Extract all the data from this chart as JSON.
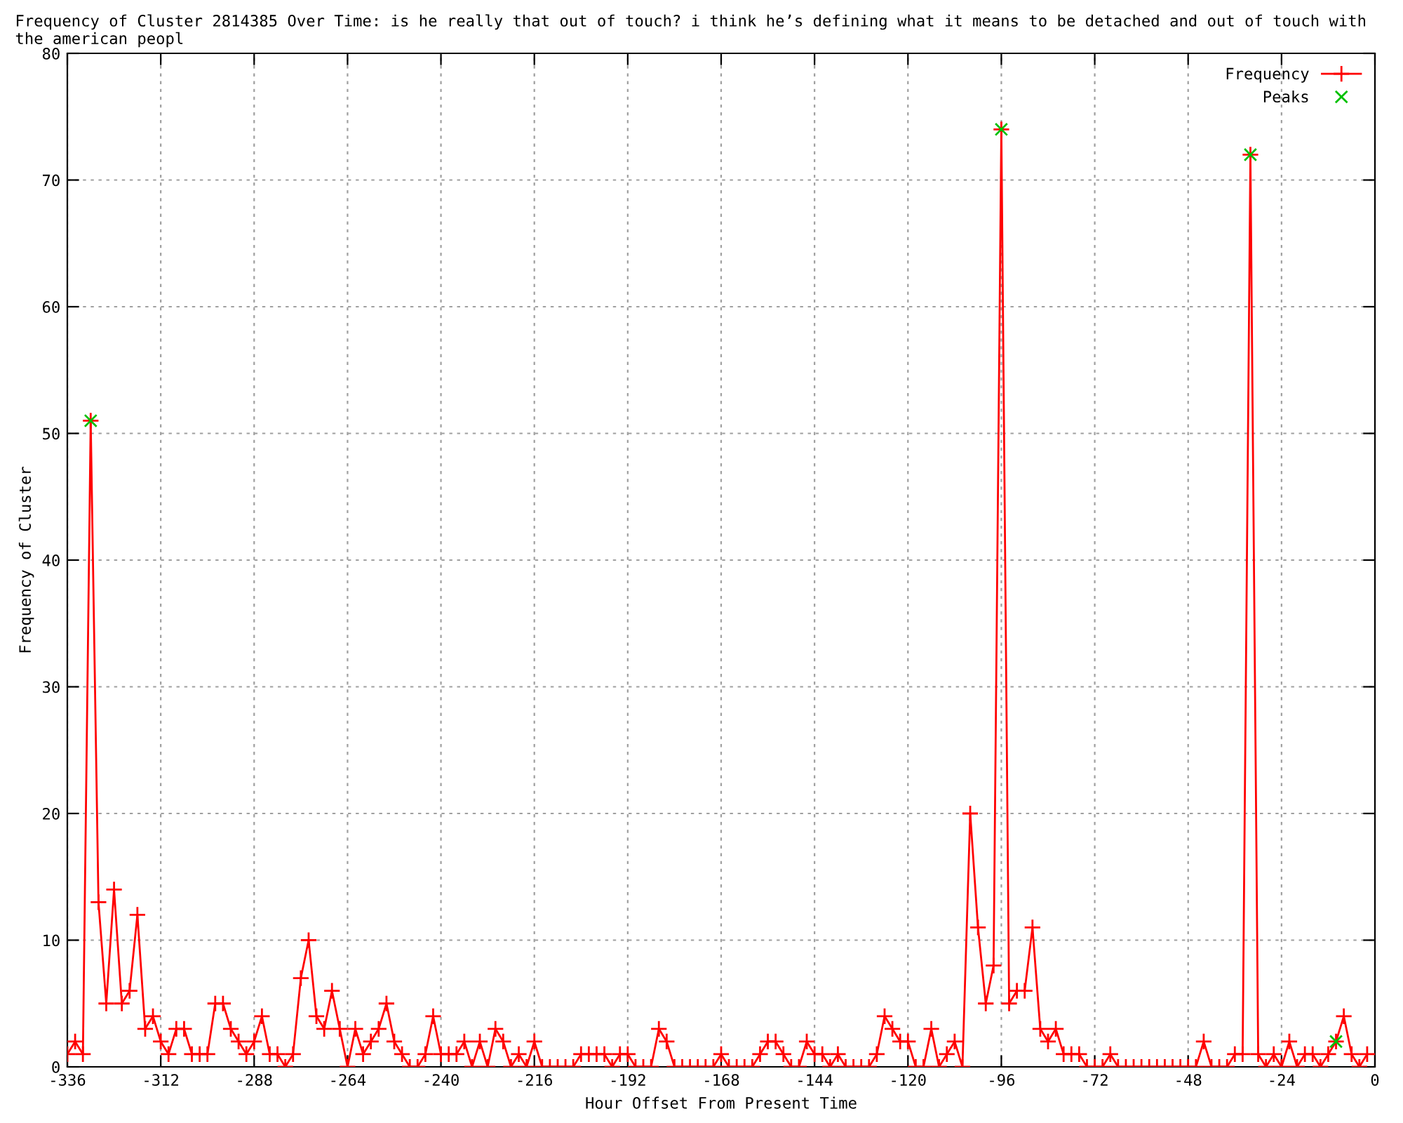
{
  "chart_data": {
    "type": "line",
    "title": "Frequency of Cluster 2814385 Over Time: is he really that out of touch? i think he’s defining what it means to be detached and out of touch with the american peopl",
    "xlabel": "Hour Offset From Present Time",
    "ylabel": "Frequency of Cluster",
    "xlim": [
      -336,
      0
    ],
    "xticks": [
      -336,
      -312,
      -288,
      -264,
      -240,
      -216,
      -192,
      -168,
      -144,
      -120,
      -96,
      -72,
      -48,
      -24,
      0
    ],
    "ylim": [
      0,
      80
    ],
    "yticks": [
      0,
      10,
      20,
      30,
      40,
      50,
      60,
      70,
      80
    ],
    "grid": true,
    "legend": "top right",
    "series": [
      {
        "name": "Frequency",
        "color": "#ff0000",
        "marker": "cross",
        "x": [
          -336,
          -334,
          -332,
          -330,
          -328,
          -326,
          -324,
          -322,
          -320,
          -318,
          -316,
          -314,
          -312,
          -310,
          -308,
          -306,
          -304,
          -302,
          -300,
          -298,
          -296,
          -294,
          -292,
          -290,
          -288,
          -286,
          -284,
          -282,
          -280,
          -278,
          -276,
          -274,
          -272,
          -270,
          -268,
          -266,
          -264,
          -262,
          -260,
          -258,
          -256,
          -254,
          -252,
          -250,
          -248,
          -246,
          -244,
          -242,
          -240,
          -238,
          -236,
          -234,
          -232,
          -230,
          -228,
          -226,
          -224,
          -222,
          -220,
          -218,
          -216,
          -214,
          -212,
          -210,
          -208,
          -206,
          -204,
          -202,
          -200,
          -198,
          -196,
          -194,
          -192,
          -190,
          -188,
          -186,
          -184,
          -182,
          -180,
          -178,
          -176,
          -174,
          -172,
          -170,
          -168,
          -166,
          -164,
          -162,
          -160,
          -158,
          -156,
          -154,
          -152,
          -150,
          -148,
          -146,
          -144,
          -142,
          -140,
          -138,
          -136,
          -134,
          -132,
          -130,
          -128,
          -126,
          -124,
          -122,
          -120,
          -118,
          -116,
          -114,
          -112,
          -110,
          -108,
          -106,
          -104,
          -102,
          -100,
          -98,
          -96,
          -94,
          -92,
          -90,
          -88,
          -86,
          -84,
          -82,
          -80,
          -78,
          -76,
          -74,
          -72,
          -70,
          -68,
          -66,
          -64,
          -62,
          -60,
          -58,
          -56,
          -54,
          -52,
          -50,
          -48,
          -46,
          -44,
          -42,
          -40,
          -38,
          -36,
          -34,
          -32,
          -30,
          -28,
          -26,
          -24,
          -22,
          -20,
          -18,
          -16,
          -14,
          -12,
          -10,
          -8,
          -6,
          -4,
          -2
        ],
        "values": [
          1,
          2,
          1,
          51,
          13,
          5,
          14,
          5,
          6,
          12,
          3,
          4,
          2,
          1,
          3,
          3,
          1,
          1,
          1,
          5,
          5,
          3,
          2,
          1,
          2,
          4,
          1,
          1,
          0,
          1,
          7,
          10,
          4,
          3,
          6,
          3,
          0,
          3,
          1,
          2,
          3,
          5,
          2,
          1,
          0,
          0,
          1,
          4,
          1,
          1,
          1,
          2,
          0,
          2,
          0,
          3,
          2,
          0,
          1,
          0,
          2,
          0,
          0,
          0,
          0,
          0,
          1,
          1,
          1,
          1,
          0,
          1,
          1,
          0,
          0,
          0,
          3,
          2,
          0,
          0,
          0,
          0,
          0,
          0,
          1,
          0,
          0,
          0,
          0,
          1,
          2,
          2,
          1,
          0,
          0,
          2,
          1,
          1,
          0,
          1,
          0,
          0,
          0,
          0,
          1,
          4,
          3,
          2,
          2,
          0,
          0,
          3,
          0,
          1,
          2,
          0,
          20,
          11,
          5,
          8,
          74,
          5,
          6,
          6,
          11,
          3,
          2,
          3,
          1,
          1,
          1,
          0,
          0,
          0,
          1,
          0,
          0,
          0,
          0,
          0,
          0,
          0,
          0,
          0,
          0,
          0,
          2,
          0,
          0,
          0,
          1,
          1,
          72,
          1,
          0,
          1,
          0,
          2,
          0,
          1,
          1,
          0,
          1,
          2,
          4,
          1,
          0,
          1
        ]
      },
      {
        "name": "Peaks",
        "type": "scatter",
        "color": "#00c000",
        "marker": "cross",
        "x": [
          -330,
          -96,
          -32,
          -10
        ],
        "values": [
          51,
          74,
          72,
          2
        ]
      }
    ]
  }
}
